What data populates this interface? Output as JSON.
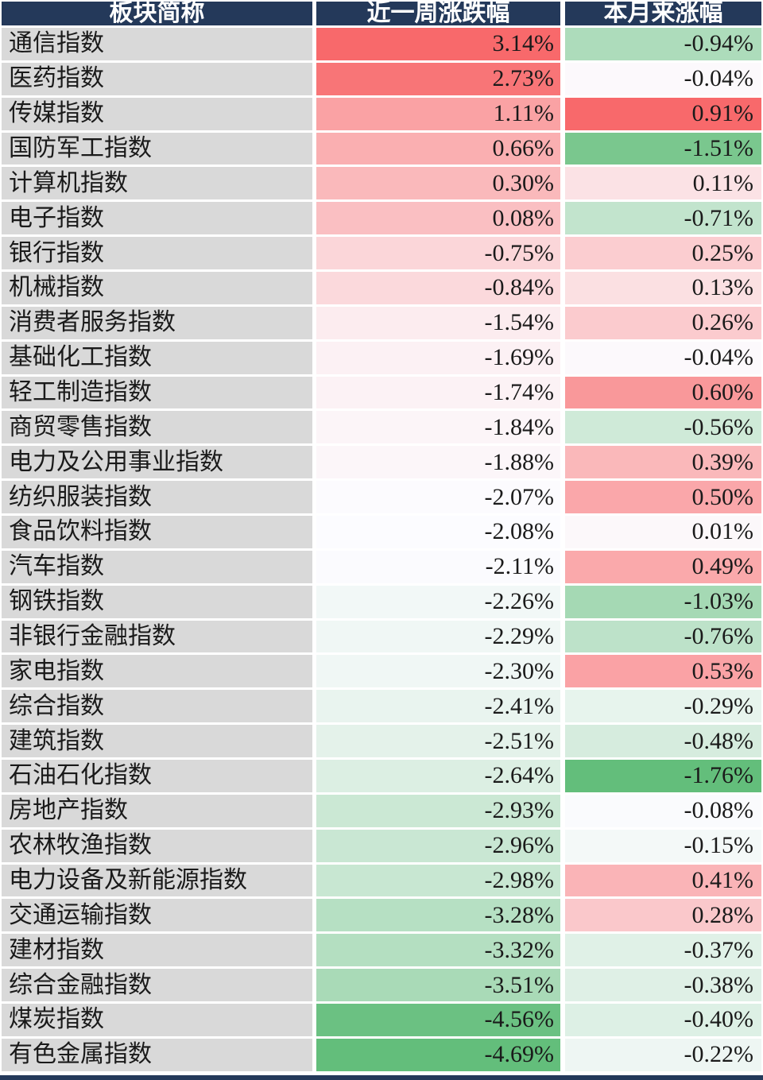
{
  "table": {
    "headers": [
      "板块简称",
      "近一周涨跌幅",
      "本月来涨幅"
    ],
    "style": {
      "header_bg": "#24395A",
      "header_text": "#FFFFFF",
      "name_col_bg": "#D9D9D9",
      "grid_color": "#FFFFFF",
      "footer_bar_color": "#24395A",
      "value_text_color": "#1A1A1A",
      "scale_max_color": "#F8696B",
      "scale_mid_color": "#FCFCFF",
      "scale_min_color": "#63BE7B"
    },
    "rows": [
      {
        "name": "通信指数",
        "week": "3.14%",
        "month": "-0.94%",
        "week_bg": "#F8696B",
        "month_bg": "#ADDCBB"
      },
      {
        "name": "医药指数",
        "week": "2.73%",
        "month": "-0.04%",
        "week_bg": "#F87577",
        "month_bg": "#FCF9FC"
      },
      {
        "name": "传媒指数",
        "week": "1.11%",
        "month": "0.91%",
        "week_bg": "#FAA2A4",
        "month_bg": "#F8696B"
      },
      {
        "name": "国防军工指数",
        "week": "0.66%",
        "month": "-1.51%",
        "week_bg": "#FAAFB1",
        "month_bg": "#7AC78E"
      },
      {
        "name": "计算机指数",
        "week": "0.30%",
        "month": "0.11%",
        "week_bg": "#FAB9BB",
        "month_bg": "#FBE2E5"
      },
      {
        "name": "电子指数",
        "week": "0.08%",
        "month": "-0.71%",
        "week_bg": "#FABFC2",
        "month_bg": "#C2E4CD"
      },
      {
        "name": "银行指数",
        "week": "-0.75%",
        "month": "0.25%",
        "week_bg": "#FBD6D9",
        "month_bg": "#FBCDD0"
      },
      {
        "name": "机械指数",
        "week": "-0.84%",
        "month": "0.13%",
        "week_bg": "#FBD9DC",
        "month_bg": "#FBE0E2"
      },
      {
        "name": "消费者服务指数",
        "week": "-1.54%",
        "month": "0.26%",
        "week_bg": "#FCECEF",
        "month_bg": "#FBCBCE"
      },
      {
        "name": "基础化工指数",
        "week": "-1.69%",
        "month": "-0.04%",
        "week_bg": "#FCF1F4",
        "month_bg": "#FCF9FC"
      },
      {
        "name": "轻工制造指数",
        "week": "-1.74%",
        "month": "0.60%",
        "week_bg": "#FCF2F5",
        "month_bg": "#F9989A"
      },
      {
        "name": "商贸零售指数",
        "week": "-1.84%",
        "month": "-0.56%",
        "week_bg": "#FCF5F8",
        "month_bg": "#CFEAD8"
      },
      {
        "name": "电力及公用事业指数",
        "week": "-1.88%",
        "month": "0.39%",
        "week_bg": "#FCF6F9",
        "month_bg": "#FAB8BA"
      },
      {
        "name": "纺织服装指数",
        "week": "-2.07%",
        "month": "0.50%",
        "week_bg": "#FCFBFE",
        "month_bg": "#FAA7AA"
      },
      {
        "name": "食品饮料指数",
        "week": "-2.08%",
        "month": "0.01%",
        "week_bg": "#FCFCFF",
        "month_bg": "#FCF8FA"
      },
      {
        "name": "汽车指数",
        "week": "-2.11%",
        "month": "0.49%",
        "week_bg": "#FBFBFE",
        "month_bg": "#FAA9AB"
      },
      {
        "name": "钢铁指数",
        "week": "-2.26%",
        "month": "-1.03%",
        "week_bg": "#F2F8F7",
        "month_bg": "#A5D9B4"
      },
      {
        "name": "非银行金融指数",
        "week": "-2.29%",
        "month": "-0.76%",
        "week_bg": "#F0F7F5",
        "month_bg": "#BDE2C9"
      },
      {
        "name": "家电指数",
        "week": "-2.30%",
        "month": "0.53%",
        "week_bg": "#F0F7F5",
        "month_bg": "#FAA2A5"
      },
      {
        "name": "综合指数",
        "week": "-2.41%",
        "month": "-0.29%",
        "week_bg": "#E9F4EF",
        "month_bg": "#E7F4ED"
      },
      {
        "name": "建筑指数",
        "week": "-2.51%",
        "month": "-0.48%",
        "week_bg": "#E4F2EA",
        "month_bg": "#D6ECDE"
      },
      {
        "name": "石油石化指数",
        "week": "-2.64%",
        "month": "-1.76%",
        "week_bg": "#DCEFE3",
        "month_bg": "#63BE7B"
      },
      {
        "name": "房地产指数",
        "week": "-2.93%",
        "month": "-0.08%",
        "week_bg": "#CBE8D4",
        "month_bg": "#FAFBFD"
      },
      {
        "name": "农林牧渔指数",
        "week": "-2.96%",
        "month": "-0.15%",
        "week_bg": "#C9E7D3",
        "month_bg": "#F4F9F8"
      },
      {
        "name": "电力设备及新能源指数",
        "week": "-2.98%",
        "month": "0.41%",
        "week_bg": "#C8E7D2",
        "month_bg": "#FAB4B7"
      },
      {
        "name": "交通运输指数",
        "week": "-3.28%",
        "month": "0.28%",
        "week_bg": "#B6E0C3",
        "month_bg": "#FAC8CB"
      },
      {
        "name": "建材指数",
        "week": "-3.32%",
        "month": "-0.37%",
        "week_bg": "#B4DFC1",
        "month_bg": "#E0F1E7"
      },
      {
        "name": "综合金融指数",
        "week": "-3.51%",
        "month": "-0.38%",
        "week_bg": "#A9DAB7",
        "month_bg": "#DFF0E6"
      },
      {
        "name": "煤炭指数",
        "week": "-4.56%",
        "month": "-0.40%",
        "week_bg": "#6BC182",
        "month_bg": "#DDF0E5"
      },
      {
        "name": "有色金属指数",
        "week": "-4.69%",
        "month": "-0.22%",
        "week_bg": "#63BE7B",
        "month_bg": "#EEF6F3"
      }
    ]
  },
  "chart_data": {
    "type": "table",
    "title": "",
    "columns": [
      "板块简称",
      "近一周涨跌幅",
      "本月来涨幅"
    ],
    "unit": "%",
    "rows": [
      [
        "通信指数",
        3.14,
        -0.94
      ],
      [
        "医药指数",
        2.73,
        -0.04
      ],
      [
        "传媒指数",
        1.11,
        0.91
      ],
      [
        "国防军工指数",
        0.66,
        -1.51
      ],
      [
        "计算机指数",
        0.3,
        0.11
      ],
      [
        "电子指数",
        0.08,
        -0.71
      ],
      [
        "银行指数",
        -0.75,
        0.25
      ],
      [
        "机械指数",
        -0.84,
        0.13
      ],
      [
        "消费者服务指数",
        -1.54,
        0.26
      ],
      [
        "基础化工指数",
        -1.69,
        -0.04
      ],
      [
        "轻工制造指数",
        -1.74,
        0.6
      ],
      [
        "商贸零售指数",
        -1.84,
        -0.56
      ],
      [
        "电力及公用事业指数",
        -1.88,
        0.39
      ],
      [
        "纺织服装指数",
        -2.07,
        0.5
      ],
      [
        "食品饮料指数",
        -2.08,
        0.01
      ],
      [
        "汽车指数",
        -2.11,
        0.49
      ],
      [
        "钢铁指数",
        -2.26,
        -1.03
      ],
      [
        "非银行金融指数",
        -2.29,
        -0.76
      ],
      [
        "家电指数",
        -2.3,
        0.53
      ],
      [
        "综合指数",
        -2.41,
        -0.29
      ],
      [
        "建筑指数",
        -2.51,
        -0.48
      ],
      [
        "石油石化指数",
        -2.64,
        -1.76
      ],
      [
        "房地产指数",
        -2.93,
        -0.08
      ],
      [
        "农林牧渔指数",
        -2.96,
        -0.15
      ],
      [
        "电力设备及新能源指数",
        -2.98,
        0.41
      ],
      [
        "交通运输指数",
        -3.28,
        0.28
      ],
      [
        "建材指数",
        -3.32,
        -0.37
      ],
      [
        "综合金融指数",
        -3.51,
        -0.38
      ],
      [
        "煤炭指数",
        -4.56,
        -0.4
      ],
      [
        "有色金属指数",
        -4.69,
        -0.22
      ]
    ],
    "layout_hints": {
      "heatmap_scale": "red-white-green per column, red=max, green=min",
      "scale_colors": {
        "max": "#F8696B",
        "mid": "#FCFCFF",
        "min": "#63BE7B"
      },
      "week_column_range": [
        -4.69,
        3.14
      ],
      "month_column_range": [
        -1.76,
        0.91
      ],
      "grid": "white gridlines",
      "header": "navy background, white bold text"
    }
  }
}
